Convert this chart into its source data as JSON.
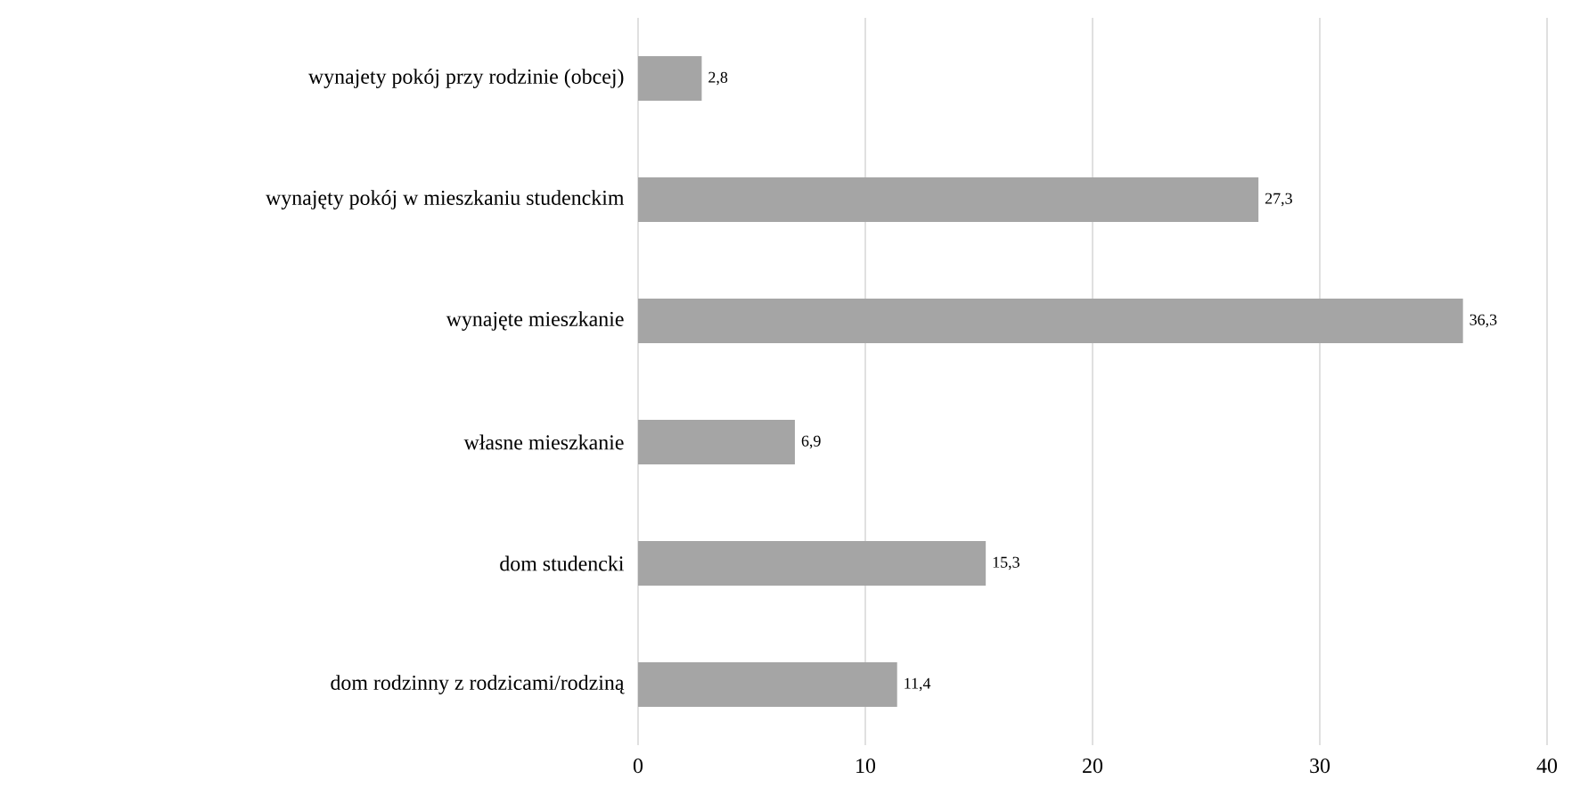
{
  "chart_data": {
    "type": "bar",
    "orientation": "horizontal",
    "categories": [
      "wynajety pokój przy rodzinie (obcej)",
      "wynajęty pokój w mieszkaniu studenckim",
      "wynajęte mieszkanie",
      "własne mieszkanie",
      "dom studencki",
      "dom rodzinny z rodzicami/rodziną"
    ],
    "values": [
      2.8,
      27.3,
      36.3,
      6.9,
      15.3,
      11.4
    ],
    "value_labels": [
      "2,8",
      "27,3",
      "36,3",
      "6,9",
      "15,3",
      "11,4"
    ],
    "color": "#a5a5a5",
    "xlim": [
      0,
      40
    ],
    "xticks": [
      0,
      10,
      20,
      30,
      40
    ],
    "grid": "x"
  }
}
